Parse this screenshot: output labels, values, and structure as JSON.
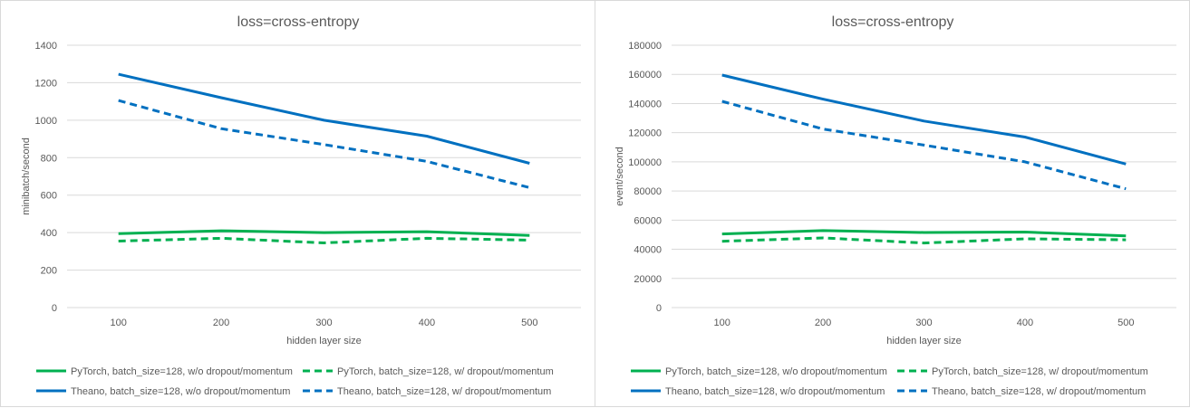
{
  "chart_data": [
    {
      "type": "line",
      "title": "loss=cross-entropy",
      "xlabel": "hidden layer size",
      "ylabel": "minibatch/second",
      "categories": [
        "100",
        "200",
        "300",
        "400",
        "500"
      ],
      "ylim": [
        0,
        1400
      ],
      "yticks": [
        0,
        200,
        400,
        600,
        800,
        1000,
        1200,
        1400
      ],
      "grid": true,
      "legend_position": "bottom",
      "series": [
        {
          "name": "PyTorch, batch_size=128, w/o dropout/momentum",
          "color": "#00b050",
          "dash": false,
          "values": [
            395,
            410,
            400,
            405,
            385
          ]
        },
        {
          "name": "PyTorch, batch_size=128, w/ dropout/momentum",
          "color": "#00b050",
          "dash": true,
          "values": [
            355,
            370,
            345,
            370,
            360
          ]
        },
        {
          "name": "Theano, batch_size=128, w/o dropout/momentum",
          "color": "#0070c0",
          "dash": false,
          "values": [
            1245,
            1120,
            1000,
            915,
            770
          ]
        },
        {
          "name": "Theano, batch_size=128, w/ dropout/momentum",
          "color": "#0070c0",
          "dash": true,
          "values": [
            1105,
            955,
            870,
            780,
            640
          ]
        }
      ]
    },
    {
      "type": "line",
      "title": "loss=cross-entropy",
      "xlabel": "hidden layer size",
      "ylabel": "event/second",
      "categories": [
        "100",
        "200",
        "300",
        "400",
        "500"
      ],
      "ylim": [
        0,
        180000
      ],
      "yticks": [
        0,
        20000,
        40000,
        60000,
        80000,
        100000,
        120000,
        140000,
        160000,
        180000
      ],
      "grid": true,
      "legend_position": "bottom",
      "series": [
        {
          "name": "PyTorch, batch_size=128, w/o dropout/momentum",
          "color": "#00b050",
          "dash": false,
          "values": [
            50500,
            52800,
            51500,
            51800,
            49200
          ]
        },
        {
          "name": "PyTorch, batch_size=128, w/ dropout/momentum",
          "color": "#00b050",
          "dash": true,
          "values": [
            45500,
            47800,
            44300,
            47200,
            46500
          ]
        },
        {
          "name": "Theano, batch_size=128, w/o dropout/momentum",
          "color": "#0070c0",
          "dash": false,
          "values": [
            159500,
            143000,
            128000,
            117000,
            98500
          ]
        },
        {
          "name": "Theano, batch_size=128, w/ dropout/momentum",
          "color": "#0070c0",
          "dash": true,
          "values": [
            141500,
            122500,
            111500,
            100000,
            81500
          ]
        }
      ]
    }
  ]
}
